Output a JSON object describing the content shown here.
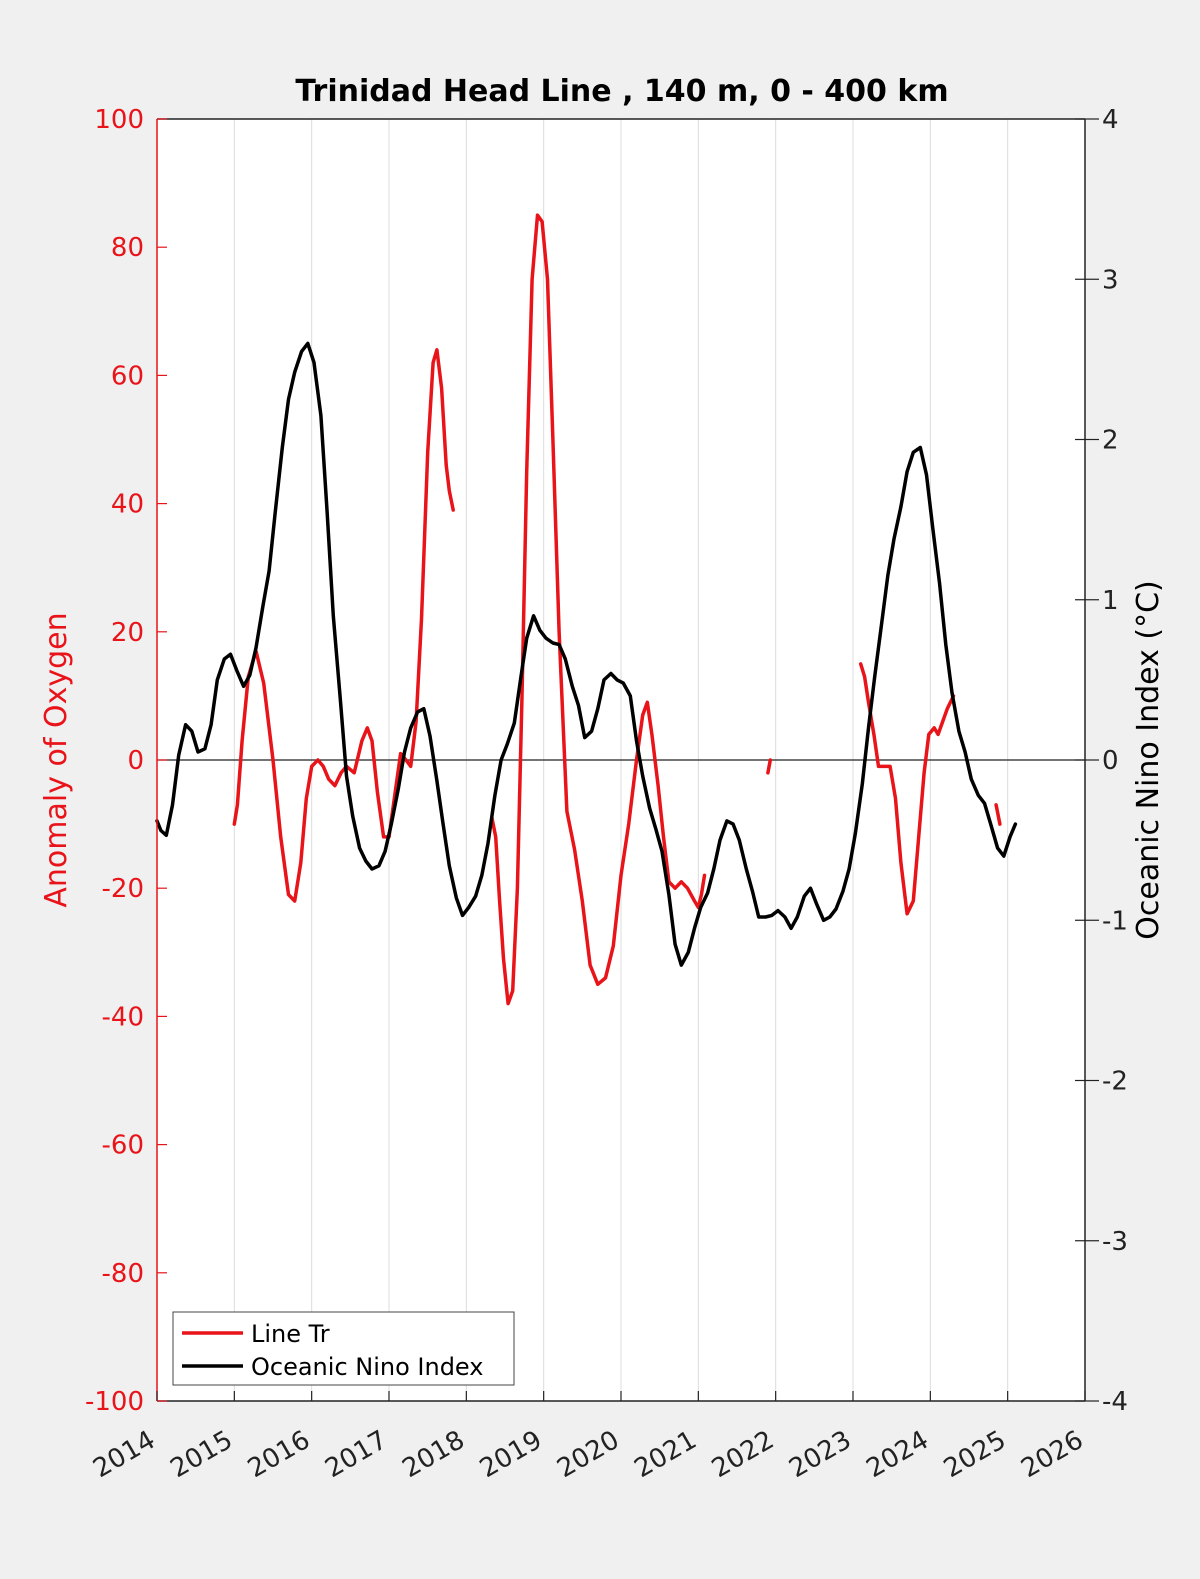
{
  "chart_data": {
    "type": "line",
    "title": "Trinidad Head Line , 140 m, 0 - 400 km",
    "xlabel": "",
    "ylabel_left": "Anomaly of Oxygen",
    "ylabel_right": "Oceanic Nino Index (°C)",
    "xlim": [
      2014,
      2026
    ],
    "ylim_left": [
      -100,
      100
    ],
    "ylim_right": [
      -4,
      4
    ],
    "x_ticks": [
      2014,
      2015,
      2016,
      2017,
      2018,
      2019,
      2020,
      2021,
      2022,
      2023,
      2024,
      2025,
      2026
    ],
    "x_tick_labels": [
      "2014",
      "2015",
      "2016",
      "2017",
      "2018",
      "2019",
      "2020",
      "2021",
      "2022",
      "2023",
      "2024",
      "2025",
      "2026"
    ],
    "y_left_ticks": [
      -100,
      -80,
      -60,
      -40,
      -20,
      0,
      20,
      40,
      60,
      80,
      100
    ],
    "y_left_tick_labels": [
      "-100",
      "-80",
      "-60",
      "-40",
      "-20",
      "0",
      "20",
      "40",
      "60",
      "80",
      "100"
    ],
    "y_right_ticks": [
      -4,
      -3,
      -2,
      -1,
      0,
      1,
      2,
      3,
      4
    ],
    "y_right_tick_labels": [
      "-4",
      "-3",
      "-2",
      "-1",
      "0",
      "1",
      "2",
      "3",
      "4"
    ],
    "grid": "vertical",
    "zero_line": true,
    "legend_position": "bottom-left",
    "series": [
      {
        "name": "Line Tr",
        "axis": "left",
        "color": "#e8141a",
        "segments": [
          [
            [
              2015.0,
              -10
            ],
            [
              2015.04,
              -7
            ],
            [
              2015.1,
              3
            ],
            [
              2015.18,
              13
            ],
            [
              2015.28,
              17
            ],
            [
              2015.38,
              12
            ],
            [
              2015.5,
              0
            ],
            [
              2015.6,
              -12
            ],
            [
              2015.7,
              -21
            ],
            [
              2015.78,
              -22
            ],
            [
              2015.86,
              -16
            ],
            [
              2015.93,
              -6
            ],
            [
              2016.0,
              -1
            ],
            [
              2016.08,
              0
            ],
            [
              2016.15,
              -1
            ],
            [
              2016.22,
              -3
            ],
            [
              2016.3,
              -4
            ],
            [
              2016.38,
              -2
            ],
            [
              2016.45,
              -1
            ],
            [
              2016.55,
              -2
            ],
            [
              2016.65,
              3
            ],
            [
              2016.72,
              5
            ],
            [
              2016.78,
              3
            ],
            [
              2016.85,
              -5
            ],
            [
              2016.93,
              -12
            ],
            [
              2017.0,
              -12
            ],
            [
              2017.08,
              -5
            ],
            [
              2017.15,
              1
            ],
            [
              2017.22,
              0
            ],
            [
              2017.28,
              -1
            ],
            [
              2017.35,
              6
            ],
            [
              2017.42,
              22
            ],
            [
              2017.5,
              48
            ],
            [
              2017.57,
              62
            ],
            [
              2017.62,
              64
            ],
            [
              2017.68,
              58
            ],
            [
              2017.74,
              46
            ],
            [
              2017.78,
              42
            ],
            [
              2017.83,
              39
            ]
          ],
          [
            [
              2018.33,
              -9
            ],
            [
              2018.38,
              -12
            ],
            [
              2018.43,
              -22
            ],
            [
              2018.48,
              -31
            ],
            [
              2018.54,
              -38
            ],
            [
              2018.6,
              -36
            ],
            [
              2018.66,
              -20
            ],
            [
              2018.72,
              10
            ],
            [
              2018.78,
              45
            ],
            [
              2018.85,
              75
            ],
            [
              2018.92,
              85
            ],
            [
              2018.98,
              84
            ],
            [
              2019.05,
              75
            ],
            [
              2019.12,
              50
            ],
            [
              2019.2,
              20
            ],
            [
              2019.3,
              -8
            ],
            [
              2019.4,
              -14
            ],
            [
              2019.5,
              -22
            ],
            [
              2019.6,
              -32
            ],
            [
              2019.7,
              -35
            ],
            [
              2019.8,
              -34
            ],
            [
              2019.9,
              -29
            ],
            [
              2020.0,
              -18
            ],
            [
              2020.1,
              -10
            ],
            [
              2020.2,
              0
            ],
            [
              2020.28,
              7
            ],
            [
              2020.34,
              9
            ],
            [
              2020.4,
              4
            ],
            [
              2020.48,
              -4
            ],
            [
              2020.55,
              -12
            ],
            [
              2020.62,
              -19
            ],
            [
              2020.7,
              -20
            ],
            [
              2020.78,
              -19
            ],
            [
              2020.86,
              -20
            ],
            [
              2020.95,
              -22
            ],
            [
              2021.0,
              -23
            ],
            [
              2021.04,
              -21
            ],
            [
              2021.08,
              -18
            ]
          ],
          [
            [
              2021.9,
              -2
            ],
            [
              2021.93,
              0
            ]
          ],
          [
            [
              2023.1,
              15
            ],
            [
              2023.15,
              13
            ],
            [
              2023.2,
              9
            ],
            [
              2023.27,
              4
            ],
            [
              2023.33,
              -1
            ],
            [
              2023.4,
              -1
            ],
            [
              2023.48,
              -1
            ],
            [
              2023.55,
              -6
            ],
            [
              2023.62,
              -16
            ],
            [
              2023.7,
              -24
            ],
            [
              2023.78,
              -22
            ],
            [
              2023.85,
              -12
            ],
            [
              2023.92,
              -2
            ],
            [
              2023.98,
              4
            ],
            [
              2024.05,
              5
            ],
            [
              2024.1,
              4
            ],
            [
              2024.16,
              6
            ],
            [
              2024.22,
              8
            ],
            [
              2024.3,
              10
            ]
          ],
          [
            [
              2024.85,
              -7
            ],
            [
              2024.9,
              -10
            ]
          ]
        ]
      },
      {
        "name": "Oceanic Nino Index",
        "axis": "right",
        "color": "#000000",
        "segments": [
          [
            [
              2014.0,
              -0.38
            ],
            [
              2014.05,
              -0.44
            ],
            [
              2014.12,
              -0.47
            ],
            [
              2014.2,
              -0.28
            ],
            [
              2014.28,
              0.03
            ],
            [
              2014.37,
              0.22
            ],
            [
              2014.45,
              0.18
            ],
            [
              2014.53,
              0.05
            ],
            [
              2014.62,
              0.07
            ],
            [
              2014.7,
              0.22
            ],
            [
              2014.78,
              0.5
            ],
            [
              2014.87,
              0.63
            ],
            [
              2014.95,
              0.66
            ],
            [
              2015.03,
              0.56
            ],
            [
              2015.12,
              0.46
            ],
            [
              2015.2,
              0.53
            ],
            [
              2015.28,
              0.7
            ],
            [
              2015.37,
              0.96
            ],
            [
              2015.45,
              1.18
            ],
            [
              2015.53,
              1.55
            ],
            [
              2015.62,
              1.95
            ],
            [
              2015.7,
              2.25
            ],
            [
              2015.78,
              2.42
            ],
            [
              2015.87,
              2.55
            ],
            [
              2015.95,
              2.6
            ],
            [
              2016.03,
              2.48
            ],
            [
              2016.12,
              2.15
            ],
            [
              2016.2,
              1.55
            ],
            [
              2016.28,
              0.9
            ],
            [
              2016.37,
              0.38
            ],
            [
              2016.45,
              -0.1
            ],
            [
              2016.53,
              -0.35
            ],
            [
              2016.62,
              -0.55
            ],
            [
              2016.7,
              -0.63
            ],
            [
              2016.78,
              -0.68
            ],
            [
              2016.87,
              -0.66
            ],
            [
              2016.95,
              -0.57
            ],
            [
              2017.03,
              -0.4
            ],
            [
              2017.12,
              -0.18
            ],
            [
              2017.2,
              0.05
            ],
            [
              2017.28,
              0.2
            ],
            [
              2017.37,
              0.3
            ],
            [
              2017.45,
              0.32
            ],
            [
              2017.53,
              0.15
            ],
            [
              2017.62,
              -0.13
            ],
            [
              2017.7,
              -0.4
            ],
            [
              2017.78,
              -0.66
            ],
            [
              2017.87,
              -0.86
            ],
            [
              2017.95,
              -0.97
            ],
            [
              2018.03,
              -0.92
            ],
            [
              2018.12,
              -0.85
            ],
            [
              2018.2,
              -0.72
            ],
            [
              2018.28,
              -0.52
            ],
            [
              2018.37,
              -0.22
            ],
            [
              2018.45,
              0.0
            ],
            [
              2018.53,
              0.1
            ],
            [
              2018.62,
              0.23
            ],
            [
              2018.7,
              0.5
            ],
            [
              2018.78,
              0.76
            ],
            [
              2018.87,
              0.9
            ],
            [
              2018.95,
              0.81
            ],
            [
              2019.03,
              0.76
            ],
            [
              2019.12,
              0.73
            ],
            [
              2019.2,
              0.72
            ],
            [
              2019.28,
              0.63
            ],
            [
              2019.37,
              0.46
            ],
            [
              2019.45,
              0.34
            ],
            [
              2019.53,
              0.14
            ],
            [
              2019.62,
              0.18
            ],
            [
              2019.7,
              0.32
            ],
            [
              2019.78,
              0.5
            ],
            [
              2019.87,
              0.54
            ],
            [
              2019.95,
              0.5
            ],
            [
              2020.03,
              0.48
            ],
            [
              2020.12,
              0.4
            ],
            [
              2020.2,
              0.12
            ],
            [
              2020.28,
              -0.1
            ],
            [
              2020.37,
              -0.3
            ],
            [
              2020.45,
              -0.43
            ],
            [
              2020.53,
              -0.57
            ],
            [
              2020.62,
              -0.84
            ],
            [
              2020.7,
              -1.15
            ],
            [
              2020.78,
              -1.28
            ],
            [
              2020.87,
              -1.2
            ],
            [
              2020.95,
              -1.05
            ],
            [
              2021.03,
              -0.92
            ],
            [
              2021.12,
              -0.83
            ],
            [
              2021.2,
              -0.68
            ],
            [
              2021.28,
              -0.5
            ],
            [
              2021.37,
              -0.38
            ],
            [
              2021.45,
              -0.4
            ],
            [
              2021.53,
              -0.5
            ],
            [
              2021.62,
              -0.68
            ],
            [
              2021.7,
              -0.82
            ],
            [
              2021.78,
              -0.98
            ],
            [
              2021.87,
              -0.98
            ],
            [
              2021.95,
              -0.97
            ],
            [
              2022.03,
              -0.94
            ],
            [
              2022.12,
              -0.98
            ],
            [
              2022.2,
              -1.05
            ],
            [
              2022.28,
              -0.98
            ],
            [
              2022.37,
              -0.85
            ],
            [
              2022.45,
              -0.8
            ],
            [
              2022.53,
              -0.9
            ],
            [
              2022.62,
              -1.0
            ],
            [
              2022.7,
              -0.98
            ],
            [
              2022.78,
              -0.93
            ],
            [
              2022.87,
              -0.82
            ],
            [
              2022.95,
              -0.68
            ],
            [
              2023.03,
              -0.46
            ],
            [
              2023.12,
              -0.15
            ],
            [
              2023.2,
              0.2
            ],
            [
              2023.28,
              0.52
            ],
            [
              2023.37,
              0.85
            ],
            [
              2023.45,
              1.15
            ],
            [
              2023.53,
              1.38
            ],
            [
              2023.62,
              1.58
            ],
            [
              2023.7,
              1.8
            ],
            [
              2023.78,
              1.92
            ],
            [
              2023.87,
              1.95
            ],
            [
              2023.95,
              1.78
            ],
            [
              2024.03,
              1.45
            ],
            [
              2024.12,
              1.1
            ],
            [
              2024.2,
              0.72
            ],
            [
              2024.28,
              0.42
            ],
            [
              2024.37,
              0.18
            ],
            [
              2024.45,
              0.05
            ],
            [
              2024.53,
              -0.12
            ],
            [
              2024.62,
              -0.22
            ],
            [
              2024.7,
              -0.27
            ],
            [
              2024.78,
              -0.4
            ],
            [
              2024.87,
              -0.55
            ],
            [
              2024.95,
              -0.6
            ],
            [
              2025.03,
              -0.48
            ],
            [
              2025.1,
              -0.4
            ]
          ]
        ]
      }
    ]
  }
}
